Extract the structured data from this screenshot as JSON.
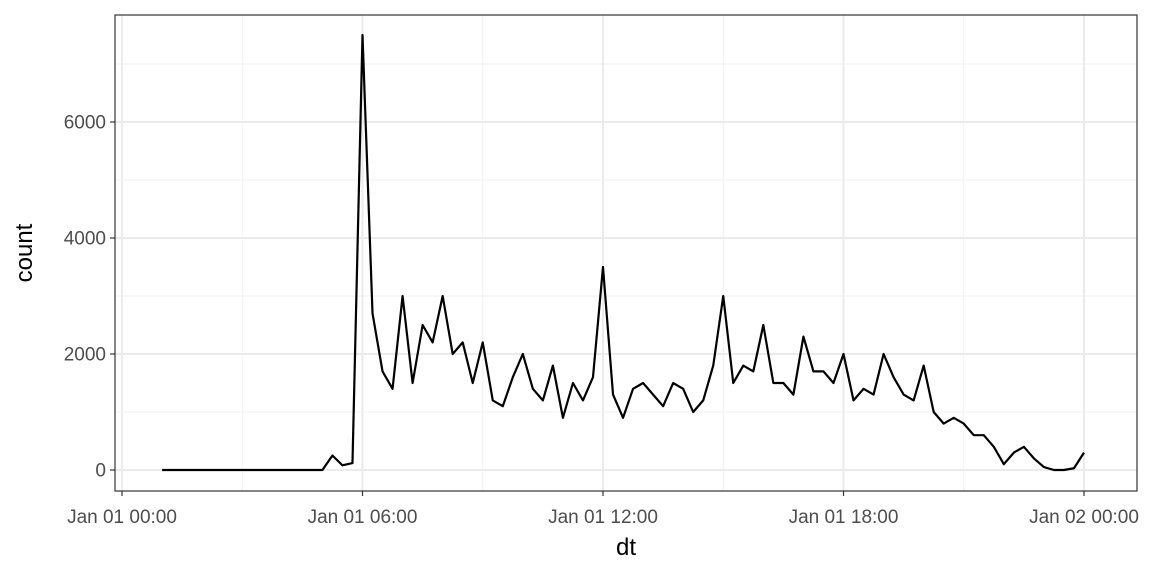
{
  "chart_data": {
    "type": "line",
    "title": "",
    "xlabel": "dt",
    "ylabel": "count",
    "xlim": [
      "2019-01-01T00:00",
      "2019-01-02T00:00"
    ],
    "ylim": [
      0,
      7500
    ],
    "grid": true,
    "legend": "none",
    "x_ticks": [
      {
        "value": "2019-01-01T00:00",
        "label": "Jan 01 00:00"
      },
      {
        "value": "2019-01-01T06:00",
        "label": "Jan 01 06:00"
      },
      {
        "value": "2019-01-01T12:00",
        "label": "Jan 01 12:00"
      },
      {
        "value": "2019-01-01T18:00",
        "label": "Jan 01 18:00"
      },
      {
        "value": "2019-01-02T00:00",
        "label": "Jan 02 00:00"
      }
    ],
    "y_ticks": [
      {
        "value": 0,
        "label": "0"
      },
      {
        "value": 2000,
        "label": "2000"
      },
      {
        "value": 4000,
        "label": "4000"
      },
      {
        "value": 6000,
        "label": "6000"
      }
    ],
    "x": [
      "2019-01-01T01:00",
      "2019-01-01T01:15",
      "2019-01-01T01:30",
      "2019-01-01T01:45",
      "2019-01-01T02:00",
      "2019-01-01T02:15",
      "2019-01-01T02:30",
      "2019-01-01T02:45",
      "2019-01-01T03:00",
      "2019-01-01T03:15",
      "2019-01-01T03:30",
      "2019-01-01T03:45",
      "2019-01-01T04:00",
      "2019-01-01T04:15",
      "2019-01-01T04:30",
      "2019-01-01T04:45",
      "2019-01-01T05:00",
      "2019-01-01T05:15",
      "2019-01-01T05:30",
      "2019-01-01T05:45",
      "2019-01-01T06:00",
      "2019-01-01T06:15",
      "2019-01-01T06:30",
      "2019-01-01T06:45",
      "2019-01-01T07:00",
      "2019-01-01T07:15",
      "2019-01-01T07:30",
      "2019-01-01T07:45",
      "2019-01-01T08:00",
      "2019-01-01T08:15",
      "2019-01-01T08:30",
      "2019-01-01T08:45",
      "2019-01-01T09:00",
      "2019-01-01T09:15",
      "2019-01-01T09:30",
      "2019-01-01T09:45",
      "2019-01-01T10:00",
      "2019-01-01T10:15",
      "2019-01-01T10:30",
      "2019-01-01T10:45",
      "2019-01-01T11:00",
      "2019-01-01T11:15",
      "2019-01-01T11:30",
      "2019-01-01T11:45",
      "2019-01-01T12:00",
      "2019-01-01T12:15",
      "2019-01-01T12:30",
      "2019-01-01T12:45",
      "2019-01-01T13:00",
      "2019-01-01T13:15",
      "2019-01-01T13:30",
      "2019-01-01T13:45",
      "2019-01-01T14:00",
      "2019-01-01T14:15",
      "2019-01-01T14:30",
      "2019-01-01T14:45",
      "2019-01-01T15:00",
      "2019-01-01T15:15",
      "2019-01-01T15:30",
      "2019-01-01T15:45",
      "2019-01-01T16:00",
      "2019-01-01T16:15",
      "2019-01-01T16:30",
      "2019-01-01T16:45",
      "2019-01-01T17:00",
      "2019-01-01T17:15",
      "2019-01-01T17:30",
      "2019-01-01T17:45",
      "2019-01-01T18:00",
      "2019-01-01T18:15",
      "2019-01-01T18:30",
      "2019-01-01T18:45",
      "2019-01-01T19:00",
      "2019-01-01T19:15",
      "2019-01-01T19:30",
      "2019-01-01T19:45",
      "2019-01-01T20:00",
      "2019-01-01T20:15",
      "2019-01-01T20:30",
      "2019-01-01T20:45",
      "2019-01-01T21:00",
      "2019-01-01T21:15",
      "2019-01-01T21:30",
      "2019-01-01T21:45",
      "2019-01-01T22:00",
      "2019-01-01T22:15",
      "2019-01-01T22:30",
      "2019-01-01T22:45",
      "2019-01-01T23:00",
      "2019-01-01T23:15",
      "2019-01-01T23:30",
      "2019-01-01T23:45",
      "2019-01-02T00:00"
    ],
    "series": [
      {
        "values": [
          0,
          0,
          0,
          0,
          0,
          0,
          0,
          0,
          0,
          0,
          0,
          0,
          0,
          0,
          0,
          0,
          0,
          250,
          80,
          120,
          7500,
          2700,
          1700,
          1400,
          3000,
          1500,
          2500,
          2200,
          3000,
          2000,
          2200,
          1500,
          2200,
          1200,
          1100,
          1600,
          2000,
          1400,
          1200,
          1800,
          900,
          1500,
          1200,
          1600,
          3500,
          1300,
          900,
          1400,
          1500,
          1300,
          1100,
          1500,
          1400,
          1000,
          1200,
          1800,
          3000,
          1500,
          1800,
          1700,
          2500,
          1500,
          1500,
          1300,
          2300,
          1700,
          1700,
          1500,
          2000,
          1200,
          1400,
          1300,
          2000,
          1600,
          1300,
          1200,
          1800,
          1000,
          800,
          900,
          800,
          600,
          600,
          400,
          100,
          300,
          400,
          200,
          50,
          0,
          0,
          30,
          300
        ],
        "color": "#000000"
      }
    ]
  }
}
